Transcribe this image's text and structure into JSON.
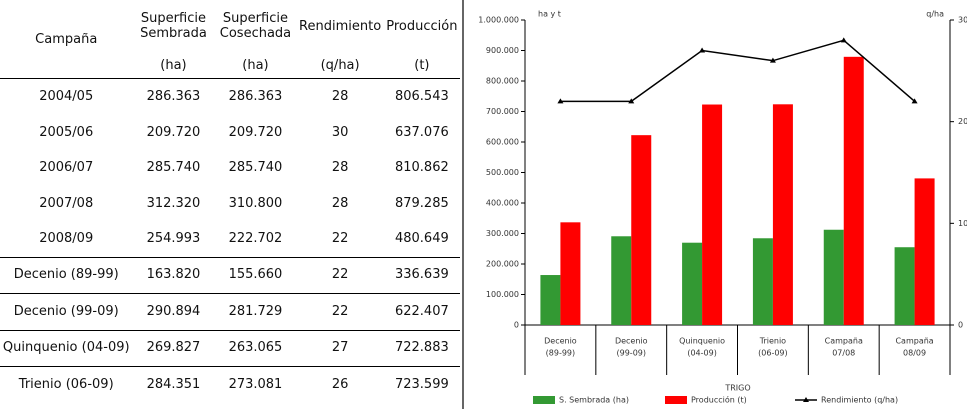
{
  "table": {
    "columns": [
      "Campaña",
      "Superficie Sembrada",
      "Superficie Cosechada",
      "Rendimiento",
      "Producción"
    ],
    "units": [
      "(ha)",
      "(ha)",
      "(q/ha)",
      "(t)"
    ],
    "rows": [
      [
        "2004/05",
        "286.363",
        "286.363",
        "28",
        "806.543"
      ],
      [
        "2005/06",
        "209.720",
        "209.720",
        "30",
        "637.076"
      ],
      [
        "2006/07",
        "285.740",
        "285.740",
        "28",
        "810.862"
      ],
      [
        "2007/08",
        "312.320",
        "310.800",
        "28",
        "879.285"
      ],
      [
        "2008/09",
        "254.993",
        "222.702",
        "22",
        "480.649"
      ],
      [
        "Decenio (89-99)",
        "163.820",
        "155.660",
        "22",
        "336.639"
      ],
      [
        "Decenio (99-09)",
        "290.894",
        "281.729",
        "22",
        "622.407"
      ],
      [
        "Quinquenio (04-09)",
        "269.827",
        "263.065",
        "27",
        "722.883"
      ],
      [
        "Trienio (06-09)",
        "284.351",
        "273.081",
        "26",
        "723.599"
      ]
    ]
  },
  "chart_data": {
    "type": "bar",
    "y_label": "ha y t",
    "y2_label": "q/ha",
    "x_label": "TRIGO",
    "categories": [
      [
        "Decenio",
        "(89-99)"
      ],
      [
        "Decenio",
        "(99-09)"
      ],
      [
        "Quinquenio",
        "(04-09)"
      ],
      [
        "Trienio",
        "(06-09)"
      ],
      [
        "Campaña",
        "07/08"
      ],
      [
        "Campaña",
        "08/09"
      ]
    ],
    "series": [
      {
        "name": "S. Sembrada (ha)",
        "color": "#339933",
        "type": "bar",
        "values": [
          163820,
          290894,
          269827,
          284351,
          312320,
          254993
        ]
      },
      {
        "name": "Producción (t)",
        "color": "#ff0000",
        "type": "bar",
        "values": [
          336639,
          622407,
          722883,
          723599,
          879285,
          480649
        ]
      },
      {
        "name": "Rendimiento (q/ha)",
        "color": "#000000",
        "type": "line",
        "axis": "y2",
        "values": [
          22,
          22,
          27,
          26,
          28,
          22
        ]
      }
    ],
    "ylim": [
      0,
      1000000
    ],
    "yticks": [
      0,
      {
        "value": 100000,
        "label": "100.000"
      },
      {
        "value": 200000,
        "label": "200.000"
      },
      {
        "value": 300000,
        "label": "300.000"
      },
      {
        "value": 400000,
        "label": "400.000"
      },
      {
        "value": 500000,
        "label": "500.000"
      },
      {
        "value": 600000,
        "label": "600.000"
      },
      {
        "value": 700000,
        "label": "700.000"
      },
      {
        "value": 800000,
        "label": "800.000"
      },
      {
        "value": 900000,
        "label": "900.000"
      },
      {
        "value": 1000000,
        "label": "1.000.000"
      }
    ],
    "y2lim": [
      0,
      30
    ],
    "y2ticks": [
      0,
      10,
      20,
      30
    ]
  }
}
